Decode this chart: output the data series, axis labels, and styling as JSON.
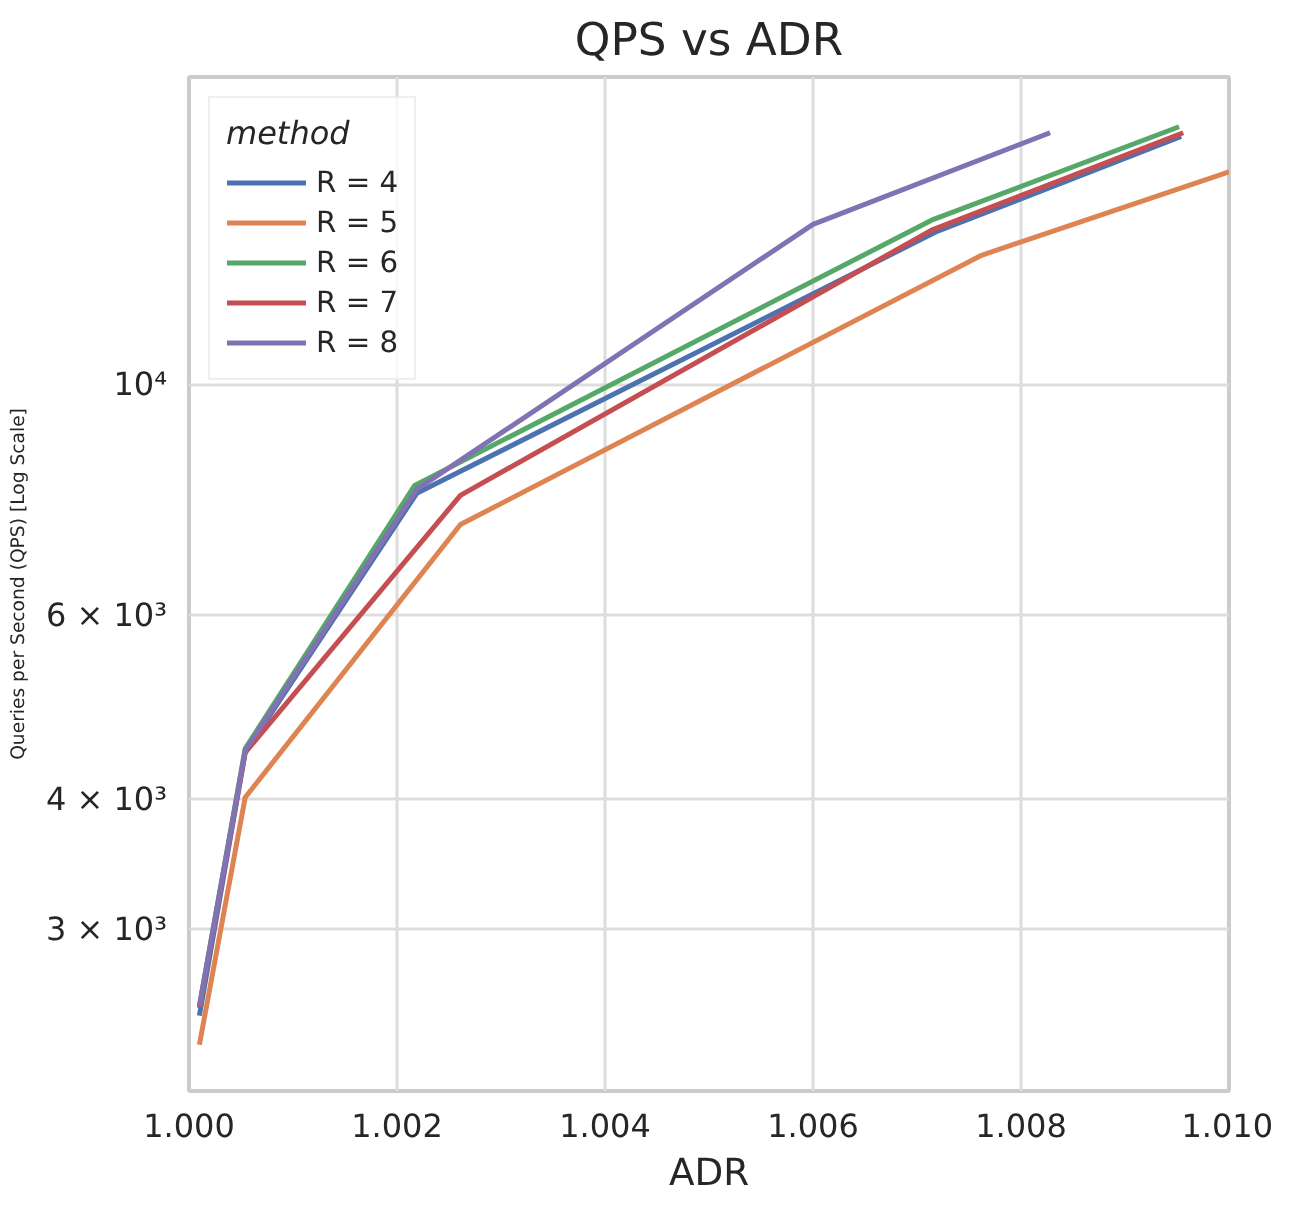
{
  "chart_data": {
    "type": "line",
    "title": "QPS vs ADR",
    "xlabel": "ADR",
    "ylabel": "Queries per Second (QPS) [Log Scale]",
    "legend_title": "method",
    "legend": "top left",
    "grid": true,
    "log": "y",
    "line_style": "solid",
    "xlim": [
      1.0,
      1.01
    ],
    "xticks": [
      {
        "value": 1.0,
        "label": "1.000"
      },
      {
        "value": 1.002,
        "label": "1.002"
      },
      {
        "value": 1.004,
        "label": "1.004"
      },
      {
        "value": 1.006,
        "label": "1.006"
      },
      {
        "value": 1.008,
        "label": "1.008"
      },
      {
        "value": 1.01,
        "label": "1.010"
      }
    ],
    "ylim": [
      2100,
      19700
    ],
    "yticks": [
      {
        "value": 3000,
        "label": "3 × 10³"
      },
      {
        "value": 4000,
        "label": "4 × 10³"
      },
      {
        "value": 6000,
        "label": "6 × 10³"
      },
      {
        "value": 10000,
        "label": "10⁴"
      }
    ],
    "series": [
      {
        "name": "R = 4",
        "color": "#4c72b0",
        "x": [
          1.0001,
          1.00054,
          1.00219,
          1.00718,
          1.00954
        ],
        "values": [
          2480,
          4433,
          7858,
          13990,
          17280
        ]
      },
      {
        "name": "R = 5",
        "color": "#dd8452",
        "x": [
          1.0001,
          1.00054,
          1.00261,
          1.00762,
          1.01
        ],
        "values": [
          2326,
          4015,
          7334,
          13290,
          15980
        ]
      },
      {
        "name": "R = 6",
        "color": "#55a868",
        "x": [
          1.0001,
          1.00054,
          1.00217,
          1.00714,
          1.00952
        ],
        "values": [
          2533,
          4472,
          7995,
          14360,
          17650
        ]
      },
      {
        "name": "R = 7",
        "color": "#c44e52",
        "x": [
          1.0001,
          1.00054,
          1.00261,
          1.00714,
          1.00956
        ],
        "values": [
          2523,
          4433,
          7823,
          14050,
          17420
        ]
      },
      {
        "name": "R = 8",
        "color": "#8172b3",
        "x": [
          1.0001,
          1.00054,
          1.00219,
          1.006,
          1.00828
        ],
        "values": [
          2533,
          4453,
          7925,
          14230,
          17420
        ]
      }
    ]
  }
}
